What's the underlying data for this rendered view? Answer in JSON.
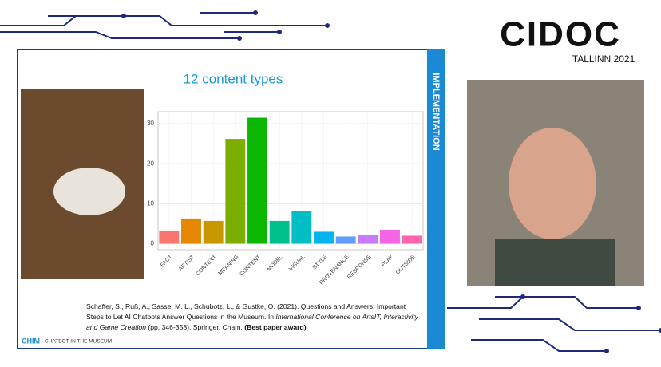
{
  "logo": {
    "name": "CIDOC",
    "place": "TALLINN 2021"
  },
  "slide": {
    "side_label": "IMPLEMENTATION",
    "citation": [
      "Schaffer, S., Ruß, A., Sasse, M. L., Schubotz, L., & Gustke, O. (2021). Questions and Answers: Important",
      "Steps to Let AI Chatbots Answer Questions in the Museum. In ",
      "International Conference on ArtsIT, Interactivity",
      "and Game Creation",
      " (pp. 346-358). Springer, Cham. ",
      "(Best paper award)"
    ],
    "footer_brand": "CHIM",
    "footer_text": "CHATBOT IN THE MUSEUM"
  },
  "chart_data": {
    "type": "bar",
    "title": "12 content types",
    "categories": [
      "FACT",
      "ARTIST",
      "CONTEXT",
      "MEANING",
      "CONTENT",
      "MODEL",
      "VISUAL",
      "STYLE",
      "PROVENANCE",
      "RESPONSE",
      "PLAY",
      "OUTSIDE"
    ],
    "values": [
      3.3,
      6.3,
      5.7,
      26.2,
      31.5,
      5.7,
      8.1,
      3,
      1.8,
      2.2,
      3.5,
      2
    ],
    "colors": [
      "#f8766d",
      "#e58700",
      "#c99800",
      "#7cae00",
      "#0cb702",
      "#00c08b",
      "#00bfc4",
      "#00b4f0",
      "#619cff",
      "#c77cff",
      "#f564e3",
      "#ff64b0"
    ],
    "ylim": [
      -1.5,
      33
    ],
    "yticks": [
      0,
      10,
      20,
      30
    ],
    "grid": true
  }
}
